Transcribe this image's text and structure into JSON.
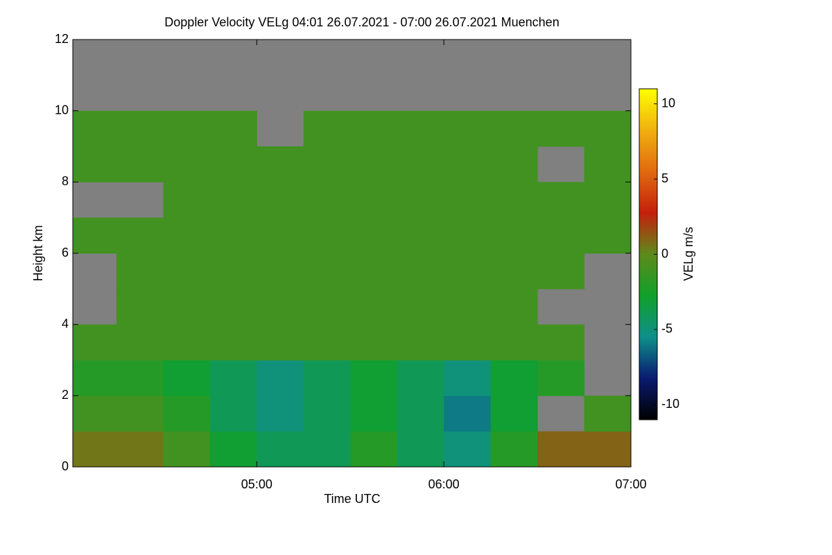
{
  "chart_data": {
    "type": "heatmap",
    "title": "Doppler Velocity VELg   04:01 26.07.2021 - 07:00 26.07.2021 Muenchen",
    "xlabel": "Time UTC",
    "ylabel": "Height km",
    "colorbar_label": "VELg m/s",
    "xbins": [
      "04:01",
      "04:15",
      "04:30",
      "04:45",
      "05:00",
      "05:15",
      "05:30",
      "05:45",
      "06:00",
      "06:15",
      "06:30",
      "06:45",
      "07:00"
    ],
    "ybins": [
      0,
      1,
      2,
      3,
      4,
      5,
      6,
      7,
      8,
      9,
      10,
      11,
      12
    ],
    "z": [
      [
        0.5,
        0.5,
        -1,
        -3,
        -4,
        -4,
        -2,
        -4,
        -5,
        -2,
        1,
        1
      ],
      [
        -1,
        -1,
        -2,
        -4,
        -5,
        -4,
        -3,
        -4,
        -6,
        -3,
        null,
        -1
      ],
      [
        -2,
        -2,
        -3,
        -4,
        -5,
        -4,
        -3,
        -4,
        -5,
        -3,
        -2,
        null
      ],
      [
        -1,
        -1,
        -1,
        -1,
        -1,
        -1,
        -1,
        -1,
        -1,
        -1,
        -1,
        null
      ],
      [
        null,
        -1,
        -1,
        -1,
        -1,
        -1,
        -1,
        -1,
        -1,
        -1,
        null,
        null
      ],
      [
        null,
        -1,
        -1,
        -1,
        -1,
        -1,
        -1,
        -1,
        -1,
        -1,
        -1,
        null
      ],
      [
        -1,
        -1,
        -1,
        -1,
        -1,
        -1,
        -1,
        -1,
        -1,
        -1,
        -1,
        -1
      ],
      [
        null,
        null,
        -1,
        -1,
        -1,
        -1,
        -1,
        -1,
        -1,
        -1,
        -1,
        -1
      ],
      [
        -1,
        -1,
        -1,
        -1,
        -1,
        -1,
        -1,
        -1,
        -1,
        -1,
        null,
        -1
      ],
      [
        -1,
        -1,
        -1,
        -1,
        null,
        -1,
        -1,
        -1,
        -1,
        -1,
        -1,
        -1
      ],
      [
        null,
        null,
        null,
        null,
        null,
        null,
        null,
        null,
        null,
        null,
        null,
        null
      ],
      [
        null,
        null,
        null,
        null,
        null,
        null,
        null,
        null,
        null,
        null,
        null,
        null
      ]
    ],
    "xlim": [
      "04:01",
      "07:00"
    ],
    "xticks": [
      "05:00",
      "06:00",
      "07:00"
    ],
    "ylim": [
      0,
      12
    ],
    "yticks": [
      0,
      2,
      4,
      6,
      8,
      10,
      12
    ],
    "clim": [
      -11,
      11
    ],
    "cticks": [
      -10,
      -5,
      0,
      5,
      10
    ],
    "colormap": [
      "#000000",
      "#0a1a70",
      "#0e8f8a",
      "#11a02a",
      "#5e8a1c",
      "#c4200c",
      "#e06a10",
      "#f0b010",
      "#ffff00"
    ],
    "background_color": "#808080"
  }
}
